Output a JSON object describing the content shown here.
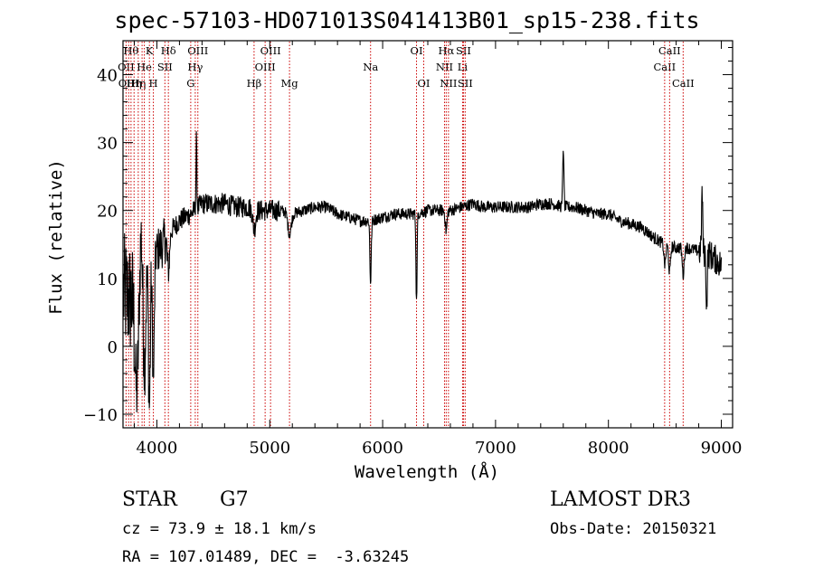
{
  "chart_data": {
    "type": "line",
    "title": "spec-57103-HD071013S041413B01_sp15-238.fits",
    "xlabel": "Wavelength (Å)",
    "ylabel": "Flux (relative)",
    "xlim": [
      3700,
      9100
    ],
    "ylim": [
      -12,
      45
    ],
    "xticks": [
      4000,
      5000,
      6000,
      7000,
      8000,
      9000
    ],
    "xtick_labels": [
      "4000",
      "5000",
      "6000",
      "7000",
      "8000",
      "9000"
    ],
    "yticks": [
      -10,
      0,
      10,
      20,
      30,
      40
    ],
    "ytick_labels": [
      "−10",
      "0",
      "10",
      "20",
      "30",
      "40"
    ],
    "continuum": [
      [
        3700,
        8
      ],
      [
        3750,
        7
      ],
      [
        3800,
        7
      ],
      [
        3850,
        8
      ],
      [
        3900,
        10
      ],
      [
        3950,
        12
      ],
      [
        4000,
        14
      ],
      [
        4050,
        15
      ],
      [
        4100,
        16.5
      ],
      [
        4150,
        17.5
      ],
      [
        4200,
        18.5
      ],
      [
        4300,
        19.5
      ],
      [
        4400,
        21
      ],
      [
        4500,
        21
      ],
      [
        4600,
        21
      ],
      [
        4700,
        20.5
      ],
      [
        4800,
        20.5
      ],
      [
        4900,
        20
      ],
      [
        5000,
        20
      ],
      [
        5100,
        20
      ],
      [
        5200,
        19.5
      ],
      [
        5300,
        20
      ],
      [
        5400,
        20.5
      ],
      [
        5500,
        20.5
      ],
      [
        5600,
        19.5
      ],
      [
        5700,
        19
      ],
      [
        5800,
        18.5
      ],
      [
        5900,
        18.5
      ],
      [
        6000,
        19
      ],
      [
        6100,
        19.5
      ],
      [
        6200,
        19.5
      ],
      [
        6300,
        19.5
      ],
      [
        6400,
        20
      ],
      [
        6500,
        20
      ],
      [
        6600,
        20
      ],
      [
        6700,
        20.5
      ],
      [
        6800,
        21
      ],
      [
        6900,
        20.5
      ],
      [
        7000,
        20.5
      ],
      [
        7100,
        20.5
      ],
      [
        7200,
        20.5
      ],
      [
        7300,
        20.5
      ],
      [
        7400,
        21
      ],
      [
        7500,
        21
      ],
      [
        7600,
        20.5
      ],
      [
        7700,
        20.5
      ],
      [
        7800,
        20
      ],
      [
        7900,
        19.5
      ],
      [
        8000,
        19.5
      ],
      [
        8100,
        18.5
      ],
      [
        8200,
        18
      ],
      [
        8300,
        17.5
      ],
      [
        8400,
        16
      ],
      [
        8500,
        15
      ],
      [
        8600,
        14.5
      ],
      [
        8700,
        14.5
      ],
      [
        8800,
        14
      ],
      [
        8900,
        13.5
      ],
      [
        9000,
        12
      ],
      [
        9010,
        10
      ]
    ],
    "features": [
      {
        "x": 3820,
        "depth": 14,
        "width": 15
      },
      {
        "x": 3860,
        "depth": -8,
        "width": 10
      },
      {
        "x": 3890,
        "depth": 12,
        "width": 10
      },
      {
        "x": 3934,
        "depth": 20,
        "width": 8
      },
      {
        "x": 3969,
        "depth": 18,
        "width": 8
      },
      {
        "x": 4102,
        "depth": 6,
        "width": 10
      },
      {
        "x": 4350,
        "depth": -10,
        "width": 4
      },
      {
        "x": 4862,
        "depth": 3,
        "width": 12
      },
      {
        "x": 5175,
        "depth": 3,
        "width": 15
      },
      {
        "x": 5893,
        "depth": 9,
        "width": 6
      },
      {
        "x": 6300,
        "depth": 13,
        "width": 5
      },
      {
        "x": 6563,
        "depth": 3,
        "width": 8
      },
      {
        "x": 7600,
        "depth": -9,
        "width": 5
      },
      {
        "x": 8500,
        "depth": 3,
        "width": 8
      },
      {
        "x": 8542,
        "depth": 4,
        "width": 8
      },
      {
        "x": 8662,
        "depth": 4,
        "width": 8
      },
      {
        "x": 8830,
        "depth": -9,
        "width": 5
      },
      {
        "x": 8870,
        "depth": 8,
        "width": 5
      }
    ],
    "line_markers": [
      {
        "x": 3727,
        "label": "OII",
        "row": 1
      },
      {
        "x": 3750,
        "label": "OIII",
        "row": 2
      },
      {
        "x": 3771,
        "label": "Hθ",
        "row": 0
      },
      {
        "x": 3798,
        "label": "Hη",
        "row": 2
      },
      {
        "x": 3835,
        "label": "Hη",
        "row": 2
      },
      {
        "x": 3869,
        "label": "",
        "row": 2
      },
      {
        "x": 3889,
        "label": "He",
        "row": 1
      },
      {
        "x": 3934,
        "label": "K",
        "row": 0
      },
      {
        "x": 3969,
        "label": "H",
        "row": 2
      },
      {
        "x": 4071,
        "label": "SII",
        "row": 1
      },
      {
        "x": 4102,
        "label": "Hδ",
        "row": 0
      },
      {
        "x": 4300,
        "label": "G",
        "row": 2
      },
      {
        "x": 4340,
        "label": "Hγ",
        "row": 1
      },
      {
        "x": 4363,
        "label": "OIII",
        "row": 0
      },
      {
        "x": 4861,
        "label": "Hβ",
        "row": 2
      },
      {
        "x": 4959,
        "label": "OIII",
        "row": 1
      },
      {
        "x": 5007,
        "label": "OIII",
        "row": 0
      },
      {
        "x": 5175,
        "label": "Mg",
        "row": 2
      },
      {
        "x": 5893,
        "label": "Na",
        "row": 1
      },
      {
        "x": 6300,
        "label": "OI",
        "row": 0
      },
      {
        "x": 6364,
        "label": "OI",
        "row": 2
      },
      {
        "x": 6548,
        "label": "NII",
        "row": 1
      },
      {
        "x": 6563,
        "label": "Hα",
        "row": 0
      },
      {
        "x": 6583,
        "label": "NII",
        "row": 2
      },
      {
        "x": 6708,
        "label": "Li",
        "row": 1
      },
      {
        "x": 6716,
        "label": "SII",
        "row": 0
      },
      {
        "x": 6731,
        "label": "SII",
        "row": 2
      },
      {
        "x": 8498,
        "label": "CaII",
        "row": 1
      },
      {
        "x": 8542,
        "label": "CaII",
        "row": 0
      },
      {
        "x": 8662,
        "label": "CaII",
        "row": 2
      }
    ]
  },
  "info": {
    "object_class": "STAR",
    "subclass": "G7",
    "survey": "LAMOST DR3",
    "cz": "cz = 73.9 ± 18.1 km/s",
    "obs_date": "Obs-Date: 20150321",
    "coords": "RA = 107.01489, DEC =  -3.63245"
  },
  "colors": {
    "line_marker": "#cc0000",
    "spectrum": "#000000",
    "axes": "#000000"
  }
}
